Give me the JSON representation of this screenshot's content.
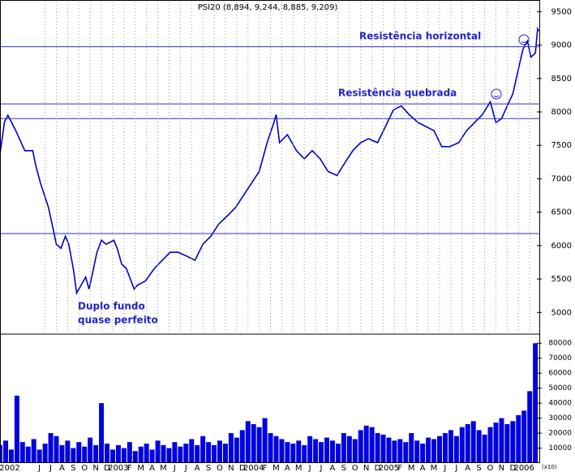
{
  "chart_data": [
    {
      "type": "line",
      "title": "PSI20 (8,894, 9,244, 8,885, 9,209)",
      "color": "#0000c8",
      "x": [
        1.0,
        1.4,
        1.7,
        2.4,
        3.2,
        3.9,
        4.2,
        4.6,
        5.3,
        5.7,
        6.0,
        6.4,
        6.8,
        7.1,
        7.5,
        7.8,
        8.2,
        8.6,
        8.9,
        9.3,
        9.6,
        10.0,
        10.4,
        11.1,
        11.4,
        11.8,
        12.2,
        12.5,
        12.9,
        13.2,
        13.9,
        14.7,
        15.4,
        16.1,
        16.8,
        17.6,
        18.3,
        19.0,
        19.7,
        20.4,
        21.2,
        21.9,
        22.6,
        23.3,
        24.0,
        24.7,
        25.3,
        25.5,
        25.8,
        26.5,
        27.3,
        28.0,
        28.7,
        29.4,
        30.1,
        30.9,
        31.6,
        32.3,
        33.0,
        33.7,
        34.5,
        35.2,
        35.9,
        36.6,
        37.3,
        38.1,
        38.8,
        39.5,
        40.2,
        40.9,
        41.7,
        42.4,
        43.1,
        43.8,
        44.5,
        45.0,
        45.5,
        46.0,
        46.5,
        46.9,
        47.4,
        47.8,
        48.1,
        48.5,
        48.7,
        48.8
      ],
      "values": [
        7370,
        7850,
        7950,
        7720,
        7420,
        7420,
        7180,
        6930,
        6570,
        6260,
        6020,
        5960,
        6140,
        6020,
        5660,
        5290,
        5410,
        5530,
        5350,
        5660,
        5900,
        6080,
        6020,
        6080,
        5960,
        5720,
        5660,
        5530,
        5350,
        5410,
        5470,
        5660,
        5780,
        5900,
        5900,
        5840,
        5780,
        6020,
        6140,
        6320,
        6450,
        6570,
        6750,
        6930,
        7110,
        7540,
        7840,
        7960,
        7540,
        7660,
        7420,
        7300,
        7420,
        7300,
        7110,
        7050,
        7240,
        7420,
        7540,
        7600,
        7540,
        7780,
        8030,
        8090,
        7960,
        7840,
        7780,
        7720,
        7480,
        7480,
        7540,
        7720,
        7840,
        7960,
        8150,
        7840,
        7900,
        8090,
        8270,
        8570,
        8940,
        9060,
        8820,
        8880,
        9244,
        9209
      ],
      "xlim": [
        1.0,
        48.85
      ],
      "ylim": [
        4700,
        9650
      ],
      "yticks": [
        5000,
        5500,
        6000,
        6500,
        7000,
        7500,
        8000,
        8500,
        9000,
        9500
      ],
      "hlines": [
        8975,
        8120,
        7900,
        6180
      ],
      "hline_color": "#3030c0",
      "grid": true,
      "annotations": [
        "Resistência horizontal",
        "Resistência quebrada",
        "Duplo fundo",
        "quase perfeito"
      ]
    },
    {
      "type": "bar",
      "color": "#0000e0",
      "unit_label": "(x10)",
      "x": [
        1,
        1.5,
        2,
        2.5,
        3,
        3.5,
        4,
        4.5,
        5,
        5.5,
        6,
        6.5,
        7,
        7.5,
        8,
        8.5,
        9,
        9.5,
        10,
        10.5,
        11,
        11.5,
        12,
        12.5,
        13,
        13.5,
        14,
        14.5,
        15,
        15.5,
        16,
        16.5,
        17,
        17.5,
        18,
        18.5,
        19,
        19.5,
        20,
        20.5,
        21,
        21.5,
        22,
        22.5,
        23,
        23.5,
        24,
        24.5,
        25,
        25.5,
        26,
        26.5,
        27,
        27.5,
        28,
        28.5,
        29,
        29.5,
        30,
        30.5,
        31,
        31.5,
        32,
        32.5,
        33,
        33.5,
        34,
        34.5,
        35,
        35.5,
        36,
        36.5,
        37,
        37.5,
        38,
        38.5,
        39,
        39.5,
        40,
        40.5,
        41,
        41.5,
        42,
        42.5,
        43,
        43.5,
        44,
        44.5,
        45,
        45.5,
        46,
        46.5,
        47,
        47.5,
        48,
        48.5
      ],
      "values": [
        12000,
        15000,
        9000,
        45000,
        14000,
        11000,
        16000,
        9000,
        13000,
        20000,
        18000,
        12000,
        15000,
        10000,
        14000,
        11000,
        17000,
        12000,
        40000,
        13000,
        9000,
        12000,
        10000,
        14000,
        8000,
        11000,
        13000,
        9000,
        15000,
        12000,
        10000,
        14000,
        11000,
        13000,
        16000,
        12000,
        18000,
        14000,
        12000,
        15000,
        13000,
        20000,
        17000,
        22000,
        28000,
        26000,
        24000,
        30000,
        20000,
        18000,
        16000,
        14000,
        13000,
        15000,
        12000,
        18000,
        16000,
        14000,
        17000,
        15000,
        13000,
        20000,
        18000,
        16000,
        22000,
        25000,
        24000,
        20000,
        19000,
        17000,
        15000,
        16000,
        14000,
        20000,
        15000,
        13000,
        17000,
        16000,
        18000,
        20000,
        22000,
        18000,
        24000,
        26000,
        28000,
        22000,
        19000,
        24000,
        27000,
        30000,
        26000,
        28000,
        32000,
        35000,
        48000,
        80000
      ],
      "xlim": [
        1.0,
        48.85
      ],
      "ylim": [
        0,
        85000
      ],
      "yticks": [
        10000,
        20000,
        30000,
        40000,
        50000,
        60000,
        70000,
        80000
      ],
      "xticks": [
        {
          "value": 1,
          "label": "2002"
        },
        {
          "value": 5,
          "label": "J"
        },
        {
          "value": 6,
          "label": "J"
        },
        {
          "value": 7,
          "label": "A"
        },
        {
          "value": 8,
          "label": "S"
        },
        {
          "value": 9,
          "label": "O"
        },
        {
          "value": 10,
          "label": "N"
        },
        {
          "value": 11,
          "label": "D"
        },
        {
          "value": 12,
          "label": "2003"
        },
        {
          "value": 13,
          "label": "F"
        },
        {
          "value": 14,
          "label": "M"
        },
        {
          "value": 15,
          "label": "A"
        },
        {
          "value": 16,
          "label": "M"
        },
        {
          "value": 17,
          "label": "J"
        },
        {
          "value": 18,
          "label": "J"
        },
        {
          "value": 19,
          "label": "A"
        },
        {
          "value": 20,
          "label": "S"
        },
        {
          "value": 21,
          "label": "O"
        },
        {
          "value": 22,
          "label": "N"
        },
        {
          "value": 23,
          "label": "D"
        },
        {
          "value": 24,
          "label": "2004"
        },
        {
          "value": 25,
          "label": "F"
        },
        {
          "value": 26,
          "label": "M"
        },
        {
          "value": 27,
          "label": "A"
        },
        {
          "value": 28,
          "label": "M"
        },
        {
          "value": 29,
          "label": "J"
        },
        {
          "value": 30,
          "label": "J"
        },
        {
          "value": 31,
          "label": "A"
        },
        {
          "value": 32,
          "label": "S"
        },
        {
          "value": 33,
          "label": "O"
        },
        {
          "value": 34,
          "label": "N"
        },
        {
          "value": 35,
          "label": "D"
        },
        {
          "value": 36,
          "label": "2005"
        },
        {
          "value": 37,
          "label": "F"
        },
        {
          "value": 38,
          "label": "M"
        },
        {
          "value": 39,
          "label": "A"
        },
        {
          "value": 40,
          "label": "M"
        },
        {
          "value": 41,
          "label": "J"
        },
        {
          "value": 42,
          "label": "J"
        },
        {
          "value": 43,
          "label": "A"
        },
        {
          "value": 44,
          "label": "S"
        },
        {
          "value": 45,
          "label": "O"
        },
        {
          "value": 46,
          "label": "N"
        },
        {
          "value": 47,
          "label": "D"
        },
        {
          "value": 48,
          "label": "2006"
        }
      ]
    }
  ]
}
